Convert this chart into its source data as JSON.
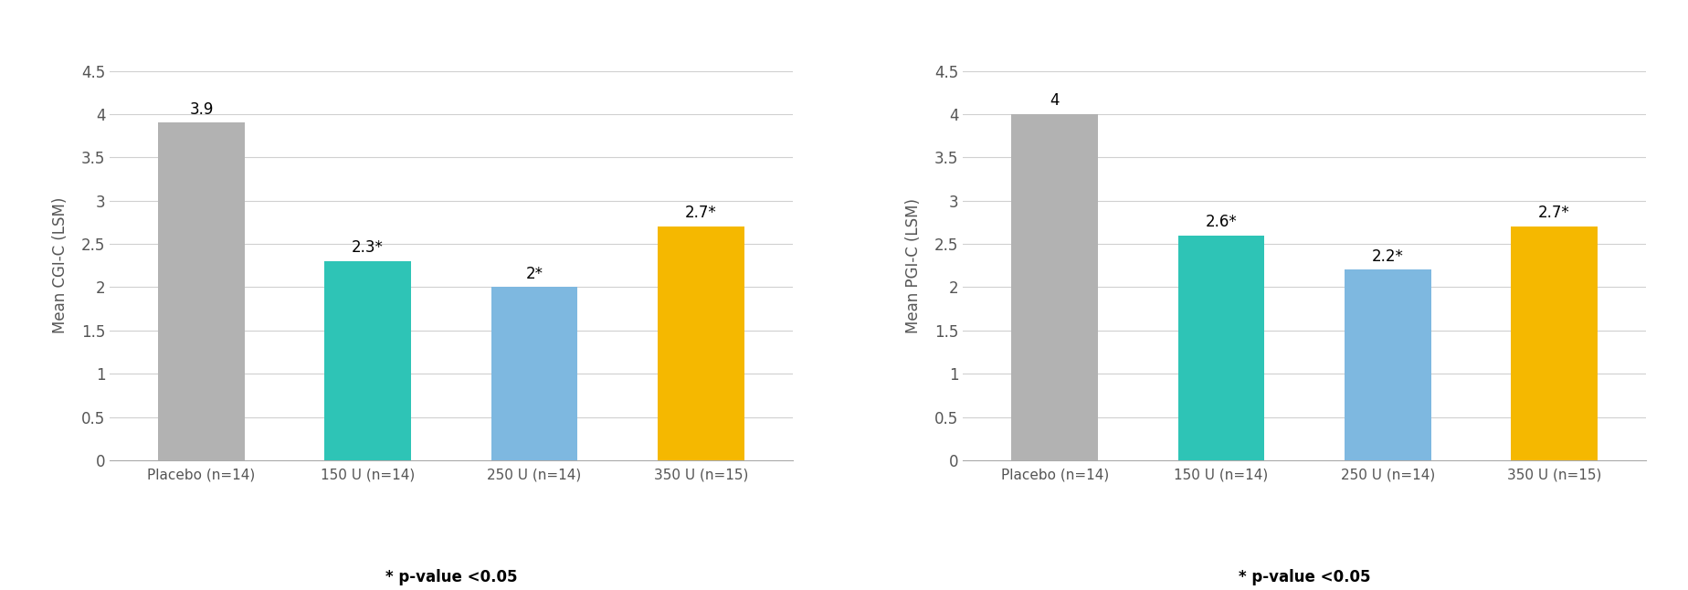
{
  "left_chart": {
    "categories": [
      "Placebo (n=14)",
      "150 U (n=14)",
      "250 U (n=14)",
      "350 U (n=15)"
    ],
    "values": [
      3.9,
      2.3,
      2.0,
      2.7
    ],
    "labels": [
      "3.9",
      "2.3*",
      "2*",
      "2.7*"
    ],
    "colors": [
      "#b2b2b2",
      "#2ec4b6",
      "#7eb8e0",
      "#f5b800"
    ],
    "ylabel": "Mean CGI-C (LSM)",
    "ylim": [
      0,
      4.5
    ],
    "yticks": [
      0,
      0.5,
      1.0,
      1.5,
      2.0,
      2.5,
      3.0,
      3.5,
      4.0,
      4.5
    ],
    "yticklabels": [
      "0",
      "0.5",
      "1",
      "1.5",
      "2",
      "2.5",
      "3",
      "3.5",
      "4",
      "4.5"
    ],
    "footnote": "* p-value <0.05"
  },
  "right_chart": {
    "categories": [
      "Placebo (n=14)",
      "150 U (n=14)",
      "250 U (n=14)",
      "350 U (n=15)"
    ],
    "values": [
      4.0,
      2.6,
      2.2,
      2.7
    ],
    "labels": [
      "4",
      "2.6*",
      "2.2*",
      "2.7*"
    ],
    "colors": [
      "#b2b2b2",
      "#2ec4b6",
      "#7eb8e0",
      "#f5b800"
    ],
    "ylabel": "Mean PGI-C (LSM)",
    "ylim": [
      0,
      4.5
    ],
    "yticks": [
      0,
      0.5,
      1.0,
      1.5,
      2.0,
      2.5,
      3.0,
      3.5,
      4.0,
      4.5
    ],
    "yticklabels": [
      "0",
      "0.5",
      "1",
      "1.5",
      "2",
      "2.5",
      "3",
      "3.5",
      "4",
      "4.5"
    ],
    "footnote": "* p-value <0.05"
  },
  "background_color": "#ffffff",
  "bar_label_fontsize": 12,
  "axis_label_fontsize": 12,
  "tick_fontsize": 12,
  "footnote_fontsize": 12,
  "xtick_fontsize": 11,
  "tick_color": "#555555",
  "label_color": "#555555",
  "grid_color": "#d0d0d0",
  "bar_width": 0.52
}
